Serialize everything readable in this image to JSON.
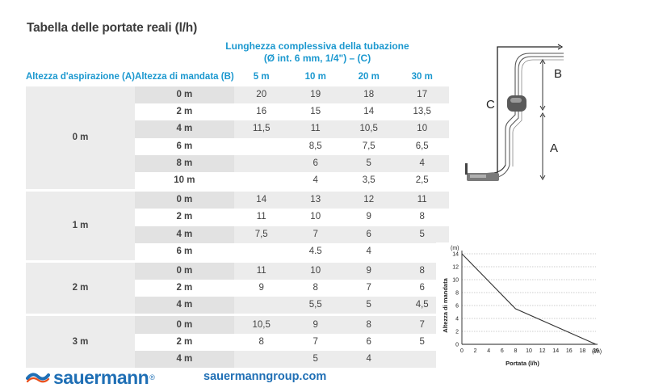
{
  "title": "Tabella delle portate reali (l/h)",
  "column_group_title_line1": "Lunghezza complessiva della tubazione",
  "column_group_title_line2": "(Ø int. 6 mm, 1/4\") – (C)",
  "headers": {
    "suction": "Altezza d'aspirazione (A)",
    "mandata": "Altezza di mandata (B)",
    "lengths": [
      "5 m",
      "10 m",
      "20 m",
      "30 m"
    ]
  },
  "groups": [
    {
      "suction": "0 m",
      "rows": [
        {
          "mandata": "0 m",
          "values": [
            "20",
            "19",
            "18",
            "17"
          ]
        },
        {
          "mandata": "2 m",
          "values": [
            "16",
            "15",
            "14",
            "13,5"
          ]
        },
        {
          "mandata": "4 m",
          "values": [
            "11,5",
            "11",
            "10,5",
            "10"
          ]
        },
        {
          "mandata": "6 m",
          "values": [
            "",
            "8,5",
            "7,5",
            "6,5"
          ]
        },
        {
          "mandata": "8 m",
          "values": [
            "",
            "6",
            "5",
            "4"
          ]
        },
        {
          "mandata": "10 m",
          "values": [
            "",
            "4",
            "3,5",
            "2,5"
          ]
        }
      ]
    },
    {
      "suction": "1 m",
      "rows": [
        {
          "mandata": "0 m",
          "values": [
            "14",
            "13",
            "12",
            "11"
          ]
        },
        {
          "mandata": "2 m",
          "values": [
            "11",
            "10",
            "9",
            "8"
          ]
        },
        {
          "mandata": "4 m",
          "values": [
            "7,5",
            "7",
            "6",
            "5"
          ]
        },
        {
          "mandata": "6 m",
          "values": [
            "",
            "4.5",
            "4",
            ""
          ]
        }
      ]
    },
    {
      "suction": "2 m",
      "rows": [
        {
          "mandata": "0 m",
          "values": [
            "11",
            "10",
            "9",
            "8"
          ]
        },
        {
          "mandata": "2 m",
          "values": [
            "9",
            "8",
            "7",
            "6"
          ]
        },
        {
          "mandata": "4 m",
          "values": [
            "",
            "5,5",
            "5",
            "4,5"
          ]
        }
      ]
    },
    {
      "suction": "3 m",
      "rows": [
        {
          "mandata": "0 m",
          "values": [
            "10,5",
            "9",
            "8",
            "7"
          ]
        },
        {
          "mandata": "2 m",
          "values": [
            "8",
            "7",
            "6",
            "5"
          ]
        },
        {
          "mandata": "4 m",
          "values": [
            "",
            "5",
            "4",
            ""
          ]
        }
      ]
    }
  ],
  "diagram": {
    "label_b": "B",
    "label_c": "C",
    "label_a": "A"
  },
  "chart_data": {
    "type": "line",
    "x": [
      0,
      8,
      20
    ],
    "series": [
      {
        "values": [
          14,
          5.5,
          0
        ]
      }
    ],
    "xlabel": "Portata (l/h)",
    "ylabel": "Altezza di mandata",
    "x_unit": "(l/h)",
    "y_unit": "(m)",
    "xlim": [
      0,
      20
    ],
    "ylim": [
      0,
      14
    ],
    "xticks": [
      0,
      2,
      4,
      6,
      8,
      10,
      12,
      14,
      16,
      18,
      20
    ],
    "yticks": [
      0,
      2,
      4,
      6,
      8,
      10,
      12,
      14
    ],
    "grid": "horizontal-dashed",
    "color": "#333333"
  },
  "footer": {
    "brand": "sauermann",
    "registered": "®",
    "url": "sauermanngroup.com"
  },
  "colors": {
    "accent": "#1b98cf",
    "brand": "#1f6fb5",
    "shade": "#ececec",
    "shade_dark": "#e2e2e2"
  }
}
